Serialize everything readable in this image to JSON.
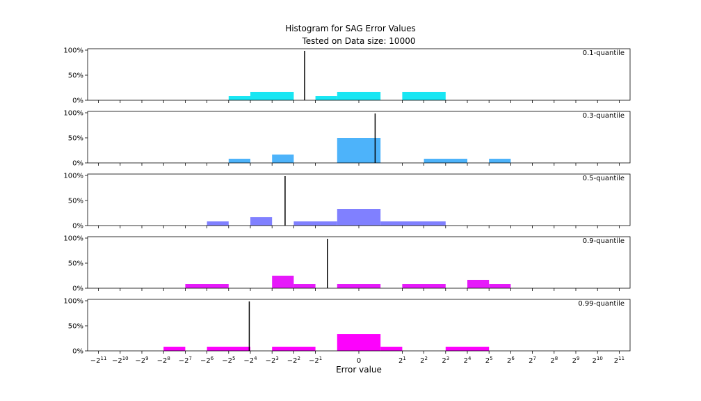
{
  "chart_data": {
    "type": "bar",
    "title": "Histogram for SAG Error Values",
    "subtitle": "Tested on Data size: 10000",
    "xlabel": "Error value",
    "x_scale": "symmetric-log2",
    "x_ticks": [
      "-2^11",
      "-2^10",
      "-2^9",
      "-2^8",
      "-2^7",
      "-2^6",
      "-2^5",
      "-2^4",
      "-2^3",
      "-2^2",
      "-2^1",
      "0",
      "2^1",
      "2^2",
      "2^3",
      "2^4",
      "2^5",
      "2^6",
      "2^7",
      "2^8",
      "2^9",
      "2^10",
      "2^11"
    ],
    "x_tick_positions": [
      -12,
      -11,
      -10,
      -9,
      -8,
      -7,
      -6,
      -5,
      -4,
      -3,
      -2,
      0,
      2,
      3,
      4,
      5,
      6,
      7,
      8,
      9,
      10,
      11,
      12
    ],
    "y_ticks": [
      "0%",
      "50%",
      "100%"
    ],
    "ylim": [
      0,
      100
    ],
    "grid": false,
    "panels": [
      {
        "label": "0.1-quantile",
        "color": "#19e6f3",
        "marker": -2.5,
        "bins": [
          {
            "from": -6,
            "to": -5,
            "value": 8.3
          },
          {
            "from": -5,
            "to": -3,
            "value": 16.7
          },
          {
            "from": -2,
            "to": -1,
            "value": 8.3
          },
          {
            "from": -1,
            "to": 1,
            "value": 16.7
          },
          {
            "from": 2,
            "to": 4,
            "value": 16.7
          }
        ]
      },
      {
        "label": "0.3-quantile",
        "color": "#4db3fa",
        "marker": 0.75,
        "bins": [
          {
            "from": -6,
            "to": -5,
            "value": 8.3
          },
          {
            "from": -4,
            "to": -3,
            "value": 16.7
          },
          {
            "from": -1,
            "to": 1,
            "value": 50
          },
          {
            "from": 3,
            "to": 5,
            "value": 8.3
          },
          {
            "from": 6,
            "to": 7,
            "value": 8.3
          }
        ]
      },
      {
        "label": "0.5-quantile",
        "color": "#8080ff",
        "marker": -3.4,
        "bins": [
          {
            "from": -7,
            "to": -6,
            "value": 8.3
          },
          {
            "from": -5,
            "to": -4,
            "value": 16.7
          },
          {
            "from": -3,
            "to": -1,
            "value": 8.3
          },
          {
            "from": -1,
            "to": 1,
            "value": 33.3
          },
          {
            "from": 1,
            "to": 4,
            "value": 8.3
          }
        ]
      },
      {
        "label": "0.9-quantile",
        "color": "#e619fa",
        "marker": -1.45,
        "bins": [
          {
            "from": -8,
            "to": -6,
            "value": 8.3
          },
          {
            "from": -4,
            "to": -3,
            "value": 25
          },
          {
            "from": -3,
            "to": -2,
            "value": 8.3
          },
          {
            "from": -1,
            "to": 1,
            "value": 8.3
          },
          {
            "from": 2,
            "to": 4,
            "value": 8.3
          },
          {
            "from": 5,
            "to": 6,
            "value": 16.7
          },
          {
            "from": 6,
            "to": 7,
            "value": 8.3
          }
        ]
      },
      {
        "label": "0.99-quantile",
        "color": "#fc03fc",
        "marker": -5.05,
        "bins": [
          {
            "from": -9,
            "to": -8,
            "value": 8.3
          },
          {
            "from": -7,
            "to": -5,
            "value": 8.3
          },
          {
            "from": -4,
            "to": -2,
            "value": 8.3
          },
          {
            "from": -1,
            "to": 1,
            "value": 33.3
          },
          {
            "from": 1,
            "to": 2,
            "value": 8.3
          },
          {
            "from": 4,
            "to": 6,
            "value": 8.3
          }
        ]
      }
    ]
  }
}
